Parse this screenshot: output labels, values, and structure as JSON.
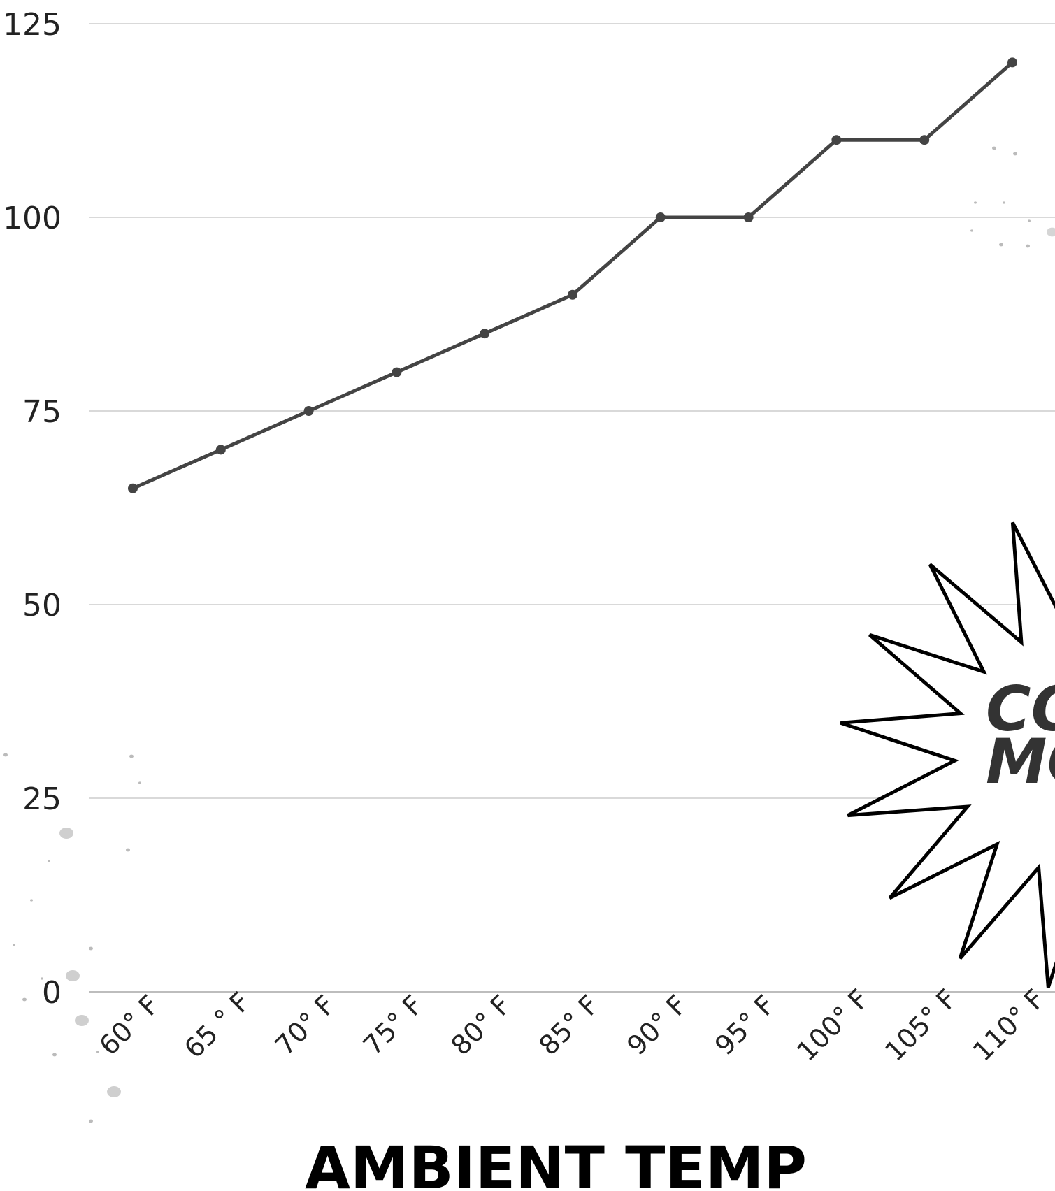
{
  "chart_data": {
    "type": "line",
    "categories": [
      "60° F",
      "65 ° F",
      "70° F",
      "75° F",
      "80° F",
      "85° F",
      "90° F",
      "95° F",
      "100° F",
      "105° F",
      "110° F"
    ],
    "series": [
      {
        "values": [
          65,
          70,
          75,
          80,
          85,
          90,
          100,
          100,
          110,
          110,
          120
        ]
      }
    ],
    "y_ticks": [
      0,
      25,
      50,
      75,
      100,
      125
    ],
    "ylim": [
      0,
      125
    ],
    "xlabel": "AMBIENT TEMP",
    "ylabel": "",
    "title": "",
    "grid": true,
    "legend": "none",
    "colors": {
      "line": "#444444",
      "grid": "#d9d9d9",
      "burst_stroke": "#000000",
      "burst_text": "#333333"
    }
  },
  "burst": {
    "line1": "CO",
    "line2": "MO"
  }
}
